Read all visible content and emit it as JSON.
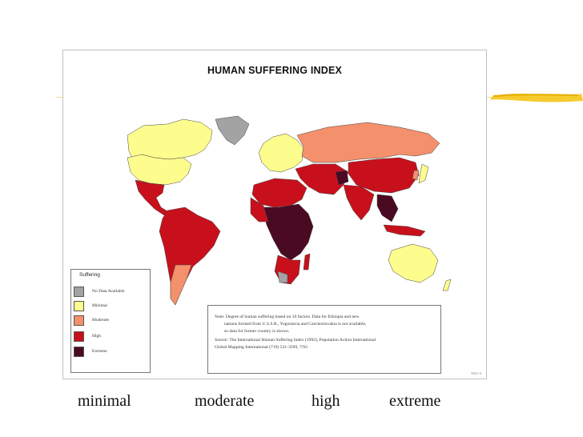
{
  "map": {
    "title": "HUMAN SUFFERING INDEX",
    "legend": {
      "title": "Suffering",
      "items": [
        {
          "label": "No Data Available",
          "color": "#a3a3a3"
        },
        {
          "label": "Minimal",
          "color": "#fdfd8e"
        },
        {
          "label": "Moderate",
          "color": "#f4906b"
        },
        {
          "label": "High",
          "color": "#c8101c"
        },
        {
          "label": "Extreme",
          "color": "#4a0a22"
        }
      ]
    },
    "note": {
      "line1": "Note: Degree of human suffering based on 10 factors. Data for Ethiopia and new",
      "line2": "nations formed from U.S.S.R., Yugoslavia and Czechoslovakia is not available,",
      "line3": "so data for former country is shown.",
      "line4": "Source:  The International Human Suffering Index (1992), Population Action International",
      "line5": "Global Mapping International (719) 531-3599, 7/93"
    },
    "credit": "9001-0"
  },
  "captions": [
    "minimal",
    "moderate",
    "high",
    "extreme"
  ],
  "colors": {
    "accent_bar": "#f5c518",
    "no_data": "#a3a3a3",
    "minimal": "#fdfd8e",
    "moderate": "#f4906b",
    "high": "#c8101c",
    "extreme": "#4a0a22"
  }
}
